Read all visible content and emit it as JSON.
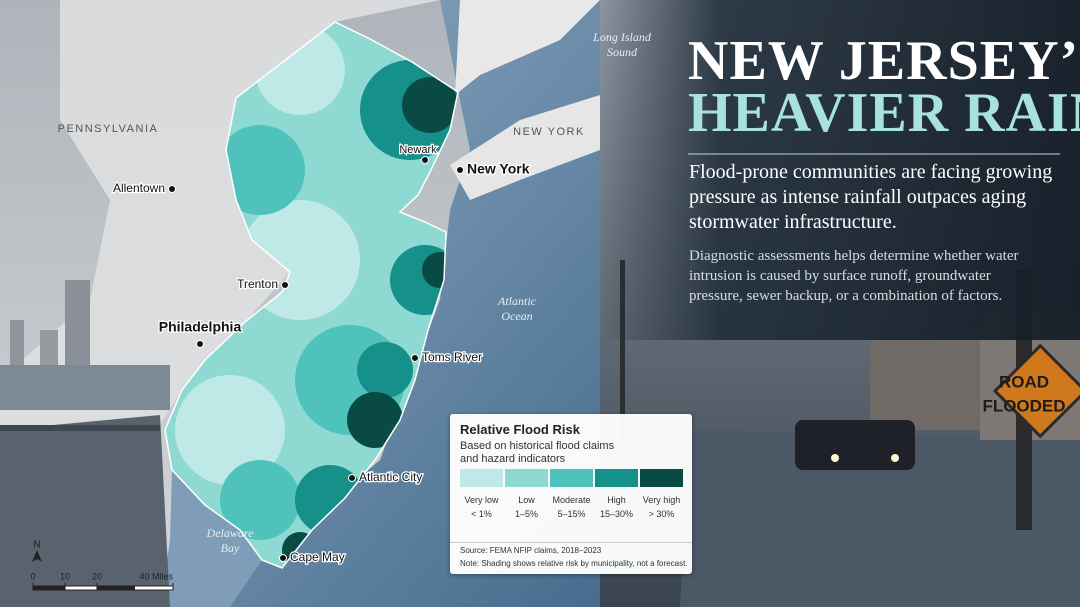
{
  "title": {
    "line1": "NEW JERSEY’S",
    "line2": "HEAVIER RAINS"
  },
  "subtitle": "Flood-prone communities are facing growing pressure as intense rainfall outpaces aging stormwater infrastructure.",
  "body": "Diagnostic assessments helps determine whether water intrusion is caused by surface runoff, groundwater pressure, sewer backup, or a combination of factors.",
  "map_labels": {
    "water": [
      "Long Island Sound",
      "Atlantic Ocean",
      "Delaware Bay"
    ],
    "states": [
      "PENNSYLVANIA",
      "NEW YORK"
    ],
    "cities": [
      "Allentown",
      "Newark",
      "New York",
      "Trenton",
      "Philadelphia",
      "Toms River",
      "Atlantic City",
      "Cape May"
    ]
  },
  "legend": {
    "title": "Relative Flood Risk",
    "subtitle": "Based on historical flood claims and hazard indicators",
    "classes": [
      {
        "name": "Very low",
        "range": "< 1%",
        "color": "#bfe9e6"
      },
      {
        "name": "Low",
        "range": "1–5%",
        "color": "#8fd9d3"
      },
      {
        "name": "Moderate",
        "range": "5–15%",
        "color": "#4fc2bb"
      },
      {
        "name": "High",
        "range": "15–30%",
        "color": "#16908a"
      },
      {
        "name": "Very high",
        "range": "> 30%",
        "color": "#0a4a44"
      }
    ],
    "source": "Source: FEMA NFIP claims, 2018–2023",
    "note": "Note: Shading shows relative risk by municipality, not a forecast."
  },
  "scale_bar": {
    "north": "N",
    "labels": [
      "0",
      "10",
      "20",
      "40 Miles"
    ]
  },
  "sign": {
    "line1": "ROAD",
    "line2": "FLOODED"
  }
}
